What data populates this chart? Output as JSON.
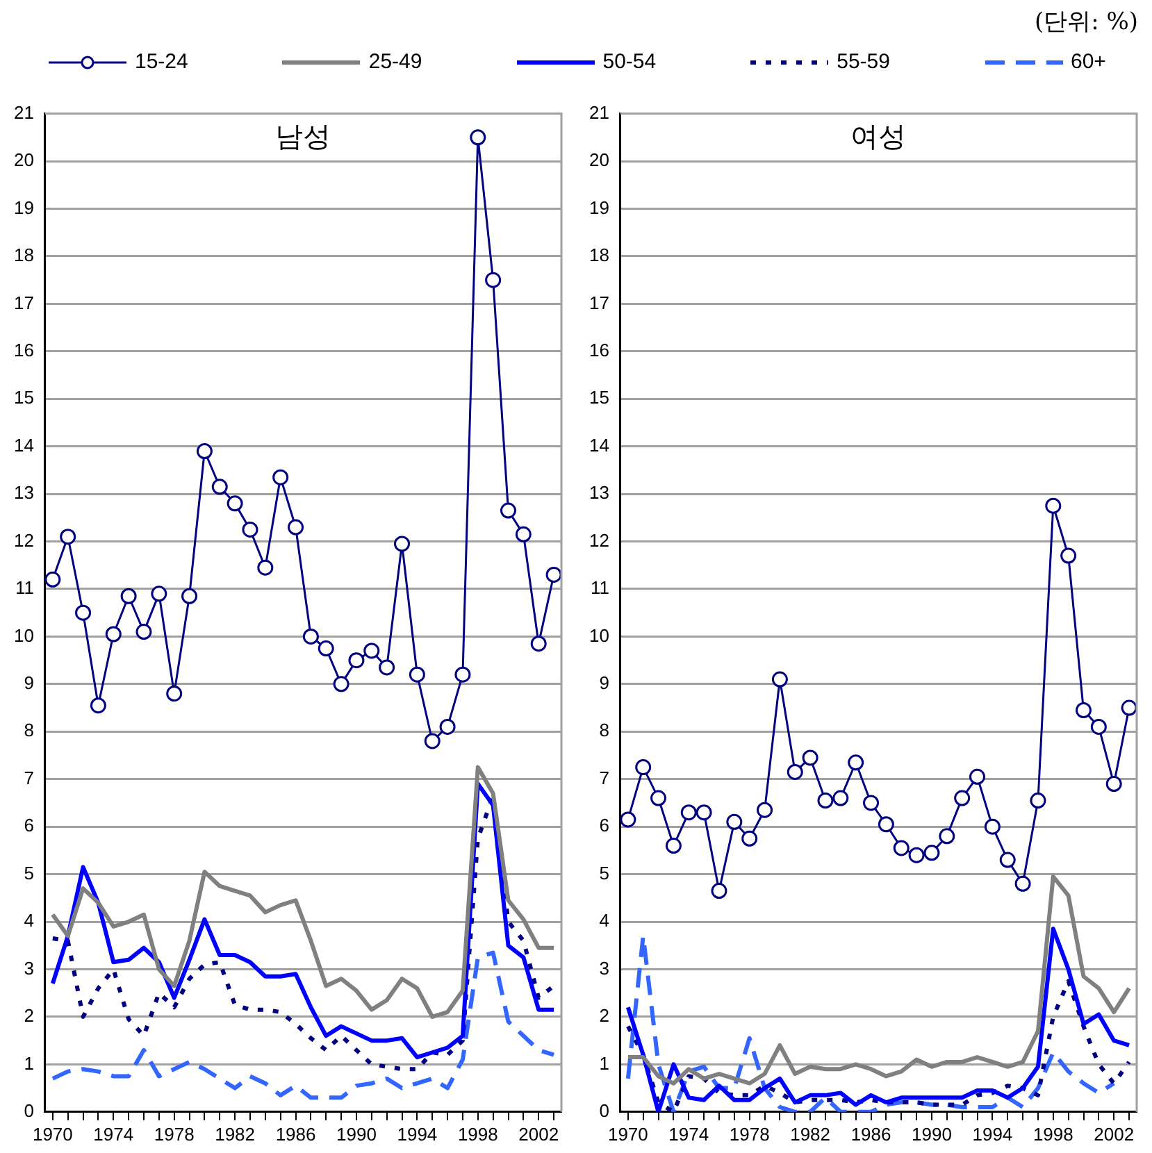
{
  "chart_data": [
    {
      "type": "line",
      "title": "남성",
      "annotations": [
        "(단위: %)"
      ],
      "legend": "top",
      "grid": "y",
      "ylim": [
        0,
        21
      ],
      "yticks": [
        0,
        1,
        2,
        3,
        4,
        5,
        6,
        7,
        8,
        9,
        10,
        11,
        12,
        13,
        14,
        15,
        16,
        17,
        18,
        19,
        20,
        21
      ],
      "categories": [
        "1970",
        null,
        null,
        null,
        "1974",
        null,
        null,
        null,
        "1978",
        null,
        null,
        null,
        "1982",
        null,
        null,
        null,
        "1986",
        null,
        null,
        null,
        "1990",
        null,
        null,
        null,
        "1994",
        null,
        null,
        null,
        "1998",
        null,
        null,
        null,
        "2002",
        null
      ],
      "series": [
        {
          "name": "15-24",
          "color": "#000080",
          "marker": "circle",
          "line_style": "solid",
          "values": [
            11.2,
            12.1,
            10.5,
            8.55,
            10.05,
            10.85,
            10.1,
            10.9,
            8.8,
            10.85,
            13.9,
            13.15,
            12.8,
            12.25,
            11.45,
            13.35,
            12.3,
            10.0,
            9.75,
            9.0,
            9.5,
            9.7,
            9.35,
            11.95,
            9.2,
            7.8,
            8.1,
            9.2,
            20.5,
            17.5,
            12.65,
            12.15,
            9.85,
            11.3
          ]
        },
        {
          "name": "25-49",
          "color": "#808080",
          "marker": "none",
          "line_style": "solid",
          "values": [
            4.15,
            3.7,
            4.7,
            4.4,
            3.9,
            4.0,
            4.15,
            3.0,
            2.65,
            3.6,
            5.05,
            4.75,
            4.65,
            4.55,
            4.2,
            4.35,
            4.45,
            3.6,
            2.65,
            2.8,
            2.55,
            2.15,
            2.35,
            2.8,
            2.6,
            2.0,
            2.1,
            2.55,
            7.25,
            6.7,
            4.45,
            4.05,
            3.45,
            3.45
          ]
        },
        {
          "name": "50-54",
          "color": "#0000ff",
          "marker": "none",
          "line_style": "solid",
          "values": [
            2.7,
            3.7,
            5.15,
            4.4,
            3.15,
            3.2,
            3.45,
            3.15,
            2.4,
            3.2,
            4.05,
            3.3,
            3.3,
            3.15,
            2.85,
            2.85,
            2.9,
            2.2,
            1.6,
            1.8,
            1.65,
            1.5,
            1.5,
            1.55,
            1.15,
            1.25,
            1.35,
            1.6,
            6.9,
            6.45,
            3.5,
            3.25,
            2.15,
            2.15
          ]
        },
        {
          "name": "55-59",
          "color": "#000080",
          "marker": "none",
          "line_style": "dotted",
          "values": [
            3.65,
            3.6,
            2.0,
            2.6,
            3.0,
            1.95,
            1.6,
            2.5,
            2.2,
            2.8,
            3.1,
            3.15,
            2.25,
            2.15,
            2.15,
            2.1,
            1.85,
            1.55,
            1.3,
            1.6,
            1.3,
            1.0,
            0.95,
            0.9,
            0.9,
            1.25,
            1.2,
            1.5,
            5.75,
            6.65,
            4.0,
            3.6,
            2.4,
            2.65
          ]
        },
        {
          "name": "60+",
          "color": "#3366ff",
          "marker": "none",
          "line_style": "dashed",
          "values": [
            0.7,
            0.85,
            0.9,
            0.85,
            0.75,
            0.75,
            1.3,
            0.75,
            0.9,
            1.05,
            0.9,
            0.7,
            0.5,
            0.75,
            0.6,
            0.35,
            0.55,
            0.3,
            0.3,
            0.3,
            0.55,
            0.6,
            0.7,
            0.5,
            0.6,
            0.7,
            0.5,
            1.1,
            3.25,
            3.35,
            1.9,
            1.6,
            1.3,
            1.2
          ]
        }
      ]
    },
    {
      "type": "line",
      "title": "여성",
      "grid": "y",
      "ylim": [
        0,
        21
      ],
      "yticks": [
        0,
        1,
        2,
        3,
        4,
        5,
        6,
        7,
        8,
        9,
        10,
        11,
        12,
        13,
        14,
        15,
        16,
        17,
        18,
        19,
        20,
        21
      ],
      "categories": [
        "1970",
        null,
        null,
        null,
        "1974",
        null,
        null,
        null,
        "1978",
        null,
        null,
        null,
        "1982",
        null,
        null,
        null,
        "1986",
        null,
        null,
        null,
        "1990",
        null,
        null,
        null,
        "1994",
        null,
        null,
        null,
        "1998",
        null,
        null,
        null,
        "2002",
        null
      ],
      "series": [
        {
          "color": "#000080",
          "marker": "circle",
          "line_style": "solid",
          "values": [
            6.15,
            7.25,
            6.6,
            5.6,
            6.3,
            6.3,
            4.65,
            6.1,
            5.75,
            6.35,
            9.1,
            7.15,
            7.45,
            6.55,
            6.6,
            7.35,
            6.5,
            6.05,
            5.55,
            5.4,
            5.45,
            5.8,
            6.6,
            7.05,
            6.0,
            5.3,
            4.8,
            6.55,
            12.75,
            11.7,
            8.45,
            8.1,
            6.9,
            8.5
          ]
        },
        {
          "color": "#808080",
          "marker": "none",
          "line_style": "solid",
          "values": [
            1.15,
            1.15,
            0.75,
            0.6,
            0.9,
            0.7,
            0.8,
            0.7,
            0.6,
            0.8,
            1.4,
            0.8,
            0.95,
            0.9,
            0.9,
            1.0,
            0.9,
            0.75,
            0.85,
            1.1,
            0.95,
            1.05,
            1.05,
            1.15,
            1.05,
            0.95,
            1.05,
            1.7,
            4.95,
            4.55,
            2.85,
            2.6,
            2.1,
            2.6
          ]
        },
        {
          "color": "#0000ff",
          "marker": "none",
          "line_style": "solid",
          "values": [
            2.2,
            1.2,
            0.0,
            1.0,
            0.3,
            0.25,
            0.55,
            0.25,
            0.25,
            0.5,
            0.7,
            0.2,
            0.35,
            0.35,
            0.4,
            0.15,
            0.35,
            0.2,
            0.3,
            0.3,
            0.3,
            0.3,
            0.3,
            0.45,
            0.45,
            0.3,
            0.5,
            0.95,
            3.85,
            3.0,
            1.85,
            2.05,
            1.5,
            1.4
          ]
        },
        {
          "color": "#000080",
          "marker": "none",
          "line_style": "dotted",
          "values": [
            1.8,
            1.2,
            0.2,
            0.0,
            0.75,
            0.7,
            0.4,
            0.35,
            0.35,
            0.55,
            0.4,
            0.2,
            0.25,
            0.25,
            0.25,
            0.2,
            0.25,
            0.2,
            0.2,
            0.2,
            0.15,
            0.15,
            0.15,
            0.35,
            0.4,
            0.55,
            0.5,
            0.35,
            2.0,
            2.75,
            1.8,
            1.0,
            0.6,
            1.05
          ]
        },
        {
          "color": "#3366ff",
          "marker": "none",
          "line_style": "dashed",
          "values": [
            0.7,
            3.7,
            1.0,
            0.0,
            0.85,
            0.95,
            0.5,
            0.5,
            1.55,
            0.5,
            0.1,
            0.0,
            0.0,
            0.3,
            0.0,
            0.0,
            0.0,
            0.15,
            0.2,
            0.2,
            0.15,
            0.15,
            0.1,
            0.1,
            0.1,
            0.3,
            0.1,
            0.5,
            1.25,
            0.85,
            0.6,
            0.4,
            0.6,
            null
          ]
        }
      ]
    }
  ]
}
